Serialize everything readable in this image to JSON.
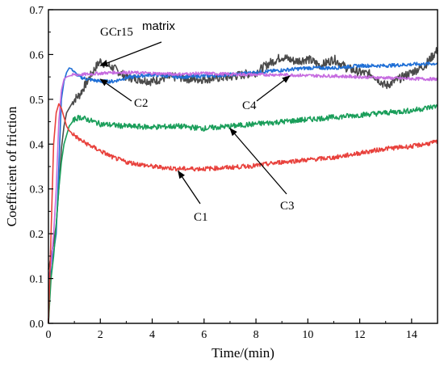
{
  "chart_data": {
    "type": "line",
    "xlabel": "Time/(min)",
    "ylabel": "Coefficient of friction",
    "xlim": [
      0,
      15
    ],
    "ylim": [
      0,
      0.7
    ],
    "xticks": [
      0,
      2,
      4,
      6,
      8,
      10,
      12,
      14
    ],
    "yticks": [
      0.0,
      0.1,
      0.2,
      0.3,
      0.4,
      0.5,
      0.6,
      0.7
    ],
    "grid": false,
    "annotations": [
      {
        "label": "GCr15",
        "series": "GCr15 matrix",
        "point_at": [
          2.0,
          0.575
        ]
      },
      {
        "label": "matrix",
        "series": "GCr15 matrix",
        "point_at": [
          2.0,
          0.575
        ]
      },
      {
        "label": "C2",
        "series": "C2",
        "point_at": [
          2.0,
          0.545
        ]
      },
      {
        "label": "C4",
        "series": "C4",
        "point_at": [
          9.3,
          0.552
        ]
      },
      {
        "label": "C1",
        "series": "C1",
        "point_at": [
          5.0,
          0.34
        ]
      },
      {
        "label": "C3",
        "series": "C3",
        "point_at": [
          7.0,
          0.435
        ]
      }
    ],
    "series": [
      {
        "name": "GCr15 matrix",
        "color": "#4a4a4a",
        "x": [
          0,
          0.1,
          0.2,
          0.3,
          0.4,
          0.5,
          0.6,
          0.7,
          0.8,
          1.0,
          1.2,
          1.5,
          1.8,
          2.0,
          2.2,
          2.5,
          3.0,
          3.5,
          4.0,
          4.5,
          5.0,
          5.5,
          6.0,
          6.5,
          7.0,
          7.5,
          8.0,
          8.5,
          9.0,
          9.5,
          10.0,
          10.5,
          11.0,
          11.5,
          12.0,
          12.5,
          13.0,
          13.5,
          14.0,
          14.5,
          15.0
        ],
        "y": [
          0.12,
          0.15,
          0.18,
          0.22,
          0.3,
          0.39,
          0.44,
          0.47,
          0.48,
          0.5,
          0.51,
          0.54,
          0.57,
          0.585,
          0.578,
          0.57,
          0.55,
          0.545,
          0.54,
          0.548,
          0.55,
          0.545,
          0.545,
          0.548,
          0.55,
          0.555,
          0.56,
          0.58,
          0.595,
          0.585,
          0.59,
          0.575,
          0.59,
          0.57,
          0.56,
          0.555,
          0.53,
          0.545,
          0.56,
          0.575,
          0.61
        ]
      },
      {
        "name": "C2",
        "color": "#1f6fd6",
        "x": [
          0,
          0.1,
          0.2,
          0.3,
          0.4,
          0.5,
          0.6,
          0.7,
          0.8,
          0.9,
          1.0,
          1.2,
          1.5,
          2.0,
          2.5,
          3.0,
          3.5,
          4.0,
          5.0,
          6.0,
          7.0,
          8.0,
          9.0,
          10.0,
          11.0,
          12.0,
          13.0,
          14.0,
          15.0
        ],
        "y": [
          0.0,
          0.13,
          0.16,
          0.2,
          0.35,
          0.5,
          0.54,
          0.56,
          0.57,
          0.568,
          0.56,
          0.55,
          0.545,
          0.54,
          0.54,
          0.548,
          0.552,
          0.555,
          0.55,
          0.552,
          0.555,
          0.56,
          0.565,
          0.57,
          0.57,
          0.575,
          0.575,
          0.578,
          0.58
        ]
      },
      {
        "name": "C4",
        "color": "#c66ce0",
        "x": [
          0,
          0.1,
          0.2,
          0.3,
          0.4,
          0.5,
          0.6,
          0.7,
          0.8,
          1.0,
          1.2,
          1.5,
          2.0,
          2.5,
          3.0,
          4.0,
          5.0,
          6.0,
          7.0,
          8.0,
          9.0,
          10.0,
          11.0,
          12.0,
          13.0,
          14.0,
          15.0
        ],
        "y": [
          0.1,
          0.13,
          0.2,
          0.3,
          0.45,
          0.52,
          0.545,
          0.55,
          0.552,
          0.555,
          0.555,
          0.556,
          0.558,
          0.56,
          0.56,
          0.558,
          0.556,
          0.558,
          0.556,
          0.555,
          0.555,
          0.553,
          0.552,
          0.55,
          0.548,
          0.546,
          0.545
        ]
      },
      {
        "name": "C3",
        "color": "#1a9e5a",
        "x": [
          0,
          0.1,
          0.2,
          0.3,
          0.4,
          0.5,
          0.6,
          0.7,
          0.8,
          1.0,
          1.2,
          1.5,
          2.0,
          3.0,
          4.0,
          5.0,
          6.0,
          7.0,
          8.0,
          9.0,
          10.0,
          11.0,
          12.0,
          13.0,
          14.0,
          15.0
        ],
        "y": [
          0.0,
          0.1,
          0.15,
          0.22,
          0.3,
          0.36,
          0.4,
          0.42,
          0.44,
          0.455,
          0.46,
          0.455,
          0.445,
          0.44,
          0.438,
          0.44,
          0.435,
          0.44,
          0.445,
          0.45,
          0.455,
          0.46,
          0.465,
          0.47,
          0.475,
          0.485
        ]
      },
      {
        "name": "C1",
        "color": "#e8413c",
        "x": [
          0,
          0.1,
          0.2,
          0.3,
          0.4,
          0.5,
          0.6,
          0.7,
          0.8,
          1.0,
          1.2,
          1.5,
          2.0,
          2.5,
          3.0,
          3.5,
          4.0,
          5.0,
          6.0,
          7.0,
          8.0,
          9.0,
          10.0,
          11.0,
          12.0,
          13.0,
          14.0,
          15.0
        ],
        "y": [
          0.0,
          0.2,
          0.4,
          0.47,
          0.49,
          0.48,
          0.46,
          0.44,
          0.43,
          0.42,
          0.41,
          0.4,
          0.385,
          0.37,
          0.36,
          0.355,
          0.35,
          0.345,
          0.345,
          0.348,
          0.352,
          0.36,
          0.365,
          0.37,
          0.38,
          0.39,
          0.395,
          0.405
        ]
      }
    ]
  }
}
